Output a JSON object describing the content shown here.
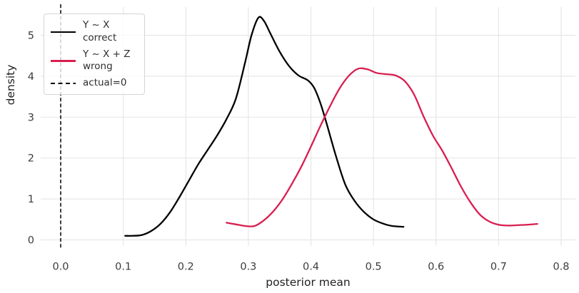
{
  "chart_data": {
    "type": "line",
    "subtype": "kde-density",
    "title": "",
    "xlabel": "posterior mean",
    "ylabel": "density",
    "xlim": [
      -0.032,
      0.823
    ],
    "ylim": [
      -0.2,
      5.72
    ],
    "xticks": [
      "0.0",
      "0.1",
      "0.2",
      "0.3",
      "0.4",
      "0.5",
      "0.6",
      "0.7",
      "0.8"
    ],
    "yticks": [
      "0",
      "1",
      "2",
      "3",
      "4",
      "5"
    ],
    "grid": true,
    "legend_position": "upper left",
    "colors": {
      "background": "#ffffff",
      "grid": "#e7e7e7",
      "tick_label": "#3c3c3c",
      "axis_label": "#212121",
      "legend_border": "#d5d5d5"
    },
    "series": [
      {
        "name": "Y ~ X",
        "sublabel": "correct",
        "color": "#000000",
        "style": "solid",
        "x": [
          0.103,
          0.115,
          0.13,
          0.145,
          0.16,
          0.175,
          0.19,
          0.205,
          0.22,
          0.235,
          0.25,
          0.265,
          0.28,
          0.295,
          0.305,
          0.316,
          0.325,
          0.335,
          0.35,
          0.365,
          0.38,
          0.395,
          0.405,
          0.415,
          0.425,
          0.44,
          0.455,
          0.47,
          0.485,
          0.5,
          0.515,
          0.53,
          0.548
        ],
        "y": [
          0.1,
          0.1,
          0.12,
          0.22,
          0.4,
          0.68,
          1.05,
          1.45,
          1.85,
          2.2,
          2.55,
          2.95,
          3.45,
          4.35,
          5.0,
          5.43,
          5.35,
          5.05,
          4.6,
          4.25,
          4.02,
          3.9,
          3.72,
          3.35,
          2.85,
          2.05,
          1.35,
          0.95,
          0.68,
          0.5,
          0.4,
          0.34,
          0.32
        ]
      },
      {
        "name": "Y ~ X + Z",
        "sublabel": "wrong",
        "color": "#d91e50",
        "style": "solid",
        "x": [
          0.265,
          0.28,
          0.295,
          0.31,
          0.325,
          0.34,
          0.355,
          0.37,
          0.385,
          0.4,
          0.415,
          0.43,
          0.445,
          0.46,
          0.475,
          0.49,
          0.505,
          0.52,
          0.535,
          0.55,
          0.565,
          0.58,
          0.595,
          0.61,
          0.625,
          0.64,
          0.655,
          0.67,
          0.685,
          0.7,
          0.715,
          0.73,
          0.745,
          0.762
        ],
        "y": [
          0.42,
          0.38,
          0.34,
          0.34,
          0.48,
          0.7,
          1.0,
          1.38,
          1.8,
          2.28,
          2.78,
          3.25,
          3.68,
          4.0,
          4.18,
          4.17,
          4.08,
          4.05,
          4.02,
          3.88,
          3.55,
          3.02,
          2.55,
          2.18,
          1.75,
          1.3,
          0.92,
          0.62,
          0.45,
          0.37,
          0.35,
          0.36,
          0.37,
          0.39
        ]
      },
      {
        "name": "actual=0",
        "sublabel": "",
        "color": "#000000",
        "style": "dashed",
        "kind": "vline",
        "x_value": 0.0
      }
    ]
  }
}
